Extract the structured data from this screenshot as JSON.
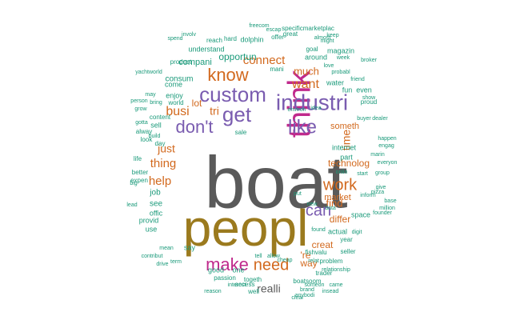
{
  "colors": {
    "grey": "#5a5a5a",
    "olive": "#9b7a1e",
    "purple": "#7a5cb0",
    "magenta": "#c02a8c",
    "orange": "#d2691e",
    "teal": "#1a9a7a",
    "background": "#ffffff"
  },
  "words": [
    {
      "text": "boat",
      "color": "grey"
    },
    {
      "text": "peopl",
      "color": "olive"
    },
    {
      "text": "think",
      "color": "magenta"
    },
    {
      "text": "custom",
      "color": "purple"
    },
    {
      "text": "industri",
      "color": "purple"
    },
    {
      "text": "get",
      "color": "purple"
    },
    {
      "text": "don't",
      "color": "purple"
    },
    {
      "text": "like",
      "color": "purple"
    },
    {
      "text": "know",
      "color": "orange"
    },
    {
      "text": "make",
      "color": "magenta"
    },
    {
      "text": "need",
      "color": "orange"
    },
    {
      "text": "work",
      "color": "orange"
    },
    {
      "text": "can",
      "color": "purple"
    },
    {
      "text": "connect",
      "color": "orange"
    },
    {
      "text": "want",
      "color": "orange"
    },
    {
      "text": "busi",
      "color": "orange"
    },
    {
      "text": "thing",
      "color": "orange"
    },
    {
      "text": "help",
      "color": "orange"
    },
    {
      "text": "just",
      "color": "orange"
    },
    {
      "text": "technolog",
      "color": "orange"
    },
    {
      "text": "time",
      "color": "orange"
    },
    {
      "text": "much",
      "color": "orange"
    },
    {
      "text": "find",
      "color": "orange"
    },
    {
      "text": "differ",
      "color": "orange"
    },
    {
      "text": "someth",
      "color": "orange"
    },
    {
      "text": "lot",
      "color": "orange"
    },
    {
      "text": "market",
      "color": "orange"
    },
    {
      "text": "creat",
      "color": "orange"
    },
    {
      "text": "realli",
      "color": "grey"
    },
    {
      "text": "'re",
      "color": "orange"
    },
    {
      "text": "way",
      "color": "orange"
    },
    {
      "text": "tri",
      "color": "orange"
    },
    {
      "text": "opportun",
      "color": "teal"
    },
    {
      "text": "compani",
      "color": "teal"
    },
    {
      "text": "consum",
      "color": "teal"
    },
    {
      "text": "understand",
      "color": "teal"
    },
    {
      "text": "product",
      "color": "teal"
    },
    {
      "text": "dolphin",
      "color": "teal"
    },
    {
      "text": "water",
      "color": "teal"
    },
    {
      "text": "internet",
      "color": "teal"
    },
    {
      "text": "part",
      "color": "teal"
    },
    {
      "text": "enjoy",
      "color": "teal"
    },
    {
      "text": "come",
      "color": "teal"
    },
    {
      "text": "world",
      "color": "teal"
    },
    {
      "text": "content",
      "color": "teal"
    },
    {
      "text": "sell",
      "color": "teal"
    },
    {
      "text": "look",
      "color": "teal"
    },
    {
      "text": "alway",
      "color": "teal"
    },
    {
      "text": "day",
      "color": "teal"
    },
    {
      "text": "job",
      "color": "teal"
    },
    {
      "text": "see",
      "color": "teal"
    },
    {
      "text": "offic",
      "color": "teal"
    },
    {
      "text": "provid",
      "color": "teal"
    },
    {
      "text": "use",
      "color": "teal"
    },
    {
      "text": "space",
      "color": "teal"
    },
    {
      "text": "actual",
      "color": "teal"
    },
    {
      "text": "year",
      "color": "teal"
    },
    {
      "text": "good",
      "color": "teal"
    },
    {
      "text": "one",
      "color": "teal"
    },
    {
      "text": "passion",
      "color": "teal"
    },
    {
      "text": "togeth",
      "color": "teal"
    },
    {
      "text": "access",
      "color": "teal"
    },
    {
      "text": "fishvalu",
      "color": "teal"
    },
    {
      "text": "problem",
      "color": "teal"
    },
    {
      "text": "trader",
      "color": "teal"
    },
    {
      "text": "seller",
      "color": "teal"
    },
    {
      "text": "relationship",
      "color": "teal"
    },
    {
      "text": "fun",
      "color": "teal"
    },
    {
      "text": "even",
      "color": "teal"
    },
    {
      "text": "magazin",
      "color": "teal"
    },
    {
      "text": "goal",
      "color": "teal"
    },
    {
      "text": "around",
      "color": "teal"
    },
    {
      "text": "hard",
      "color": "teal"
    },
    {
      "text": "reach",
      "color": "teal"
    },
    {
      "text": "offer",
      "color": "teal"
    },
    {
      "text": "specificmarketplac",
      "color": "teal"
    },
    {
      "text": "great",
      "color": "teal"
    },
    {
      "text": "inform",
      "color": "teal"
    },
    {
      "text": "group",
      "color": "teal"
    },
    {
      "text": "start",
      "color": "teal"
    },
    {
      "text": "onlin",
      "color": "teal"
    },
    {
      "text": "marin",
      "color": "teal"
    },
    {
      "text": "engag",
      "color": "teal"
    },
    {
      "text": "everyon",
      "color": "teal"
    },
    {
      "text": "show",
      "color": "teal"
    },
    {
      "text": "proud",
      "color": "teal"
    },
    {
      "text": "friend",
      "color": "teal"
    },
    {
      "text": "buyer",
      "color": "teal"
    },
    {
      "text": "dealer",
      "color": "teal"
    },
    {
      "text": "boatsoom",
      "color": "teal"
    },
    {
      "text": "interest",
      "color": "teal"
    },
    {
      "text": "say",
      "color": "teal"
    },
    {
      "text": "mean",
      "color": "teal"
    },
    {
      "text": "better",
      "color": "teal"
    },
    {
      "text": "life",
      "color": "teal"
    },
    {
      "text": "expen",
      "color": "teal"
    },
    {
      "text": "data",
      "color": "teal"
    },
    {
      "text": "digit",
      "color": "teal"
    },
    {
      "text": "put",
      "color": "teal"
    },
    {
      "text": "sale",
      "color": "teal"
    },
    {
      "text": "environ",
      "color": "teal"
    },
    {
      "text": "bring",
      "color": "teal"
    },
    {
      "text": "may",
      "color": "teal"
    },
    {
      "text": "tell",
      "color": "teal"
    },
    {
      "text": "allow",
      "color": "teal"
    },
    {
      "text": "probabl",
      "color": "teal"
    },
    {
      "text": "pizza",
      "color": "teal"
    },
    {
      "text": "well",
      "color": "teal"
    },
    {
      "text": "new",
      "color": "teal"
    },
    {
      "text": "drive",
      "color": "teal"
    },
    {
      "text": "term",
      "color": "teal"
    },
    {
      "text": "insead",
      "color": "teal"
    },
    {
      "text": "person",
      "color": "teal"
    },
    {
      "text": "freecom",
      "color": "teal"
    },
    {
      "text": "escap",
      "color": "teal"
    },
    {
      "text": "involv",
      "color": "teal"
    },
    {
      "text": "spend",
      "color": "teal"
    },
    {
      "text": "build",
      "color": "teal"
    },
    {
      "text": "might",
      "color": "teal"
    },
    {
      "text": "keep",
      "color": "teal"
    },
    {
      "text": "week",
      "color": "teal"
    },
    {
      "text": "idea",
      "color": "teal"
    },
    {
      "text": "contribut",
      "color": "teal"
    },
    {
      "text": "cheap",
      "color": "teal"
    },
    {
      "text": "someon",
      "color": "teal"
    },
    {
      "text": "brand",
      "color": "teal"
    },
    {
      "text": "reason",
      "color": "teal"
    },
    {
      "text": "anybodi",
      "color": "teal"
    },
    {
      "text": "clear",
      "color": "teal"
    },
    {
      "text": "found",
      "color": "teal"
    },
    {
      "text": "million",
      "color": "teal"
    },
    {
      "text": "founder",
      "color": "teal"
    },
    {
      "text": "give",
      "color": "teal"
    },
    {
      "text": "happen",
      "color": "teal"
    },
    {
      "text": "broker",
      "color": "teal"
    },
    {
      "text": "love",
      "color": "teal"
    },
    {
      "text": "almost",
      "color": "teal"
    },
    {
      "text": "mani",
      "color": "teal"
    },
    {
      "text": "gotta",
      "color": "teal"
    },
    {
      "text": "grow",
      "color": "teal"
    },
    {
      "text": "yachtworld",
      "color": "teal"
    },
    {
      "text": "base",
      "color": "teal"
    },
    {
      "text": "came",
      "color": "teal"
    },
    {
      "text": "relat",
      "color": "teal"
    },
    {
      "text": "lead",
      "color": "teal"
    },
    {
      "text": "big",
      "color": "teal"
    }
  ]
}
